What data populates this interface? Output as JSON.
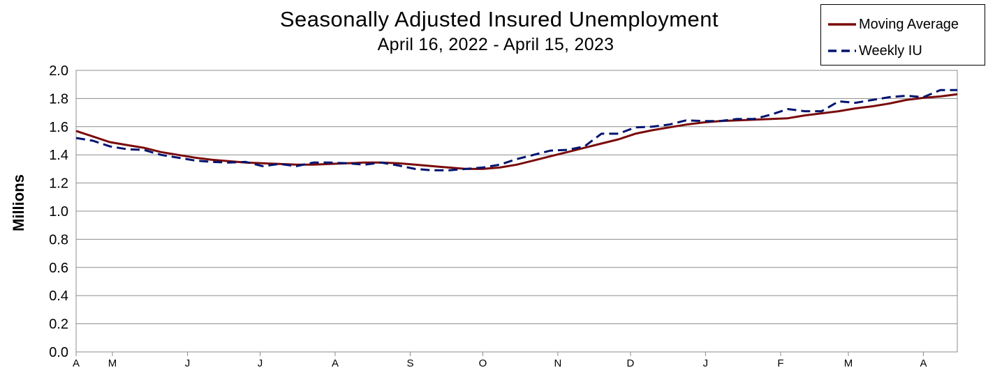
{
  "chart_data": {
    "type": "line",
    "title": "Seasonally Adjusted Insured Unemployment",
    "subtitle": "April 16, 2022 - April 15, 2023",
    "ylabel": "Millions",
    "ylim": [
      0,
      2.0
    ],
    "yticks": [
      0.0,
      0.2,
      0.4,
      0.6,
      0.8,
      1.0,
      1.2,
      1.4,
      1.6,
      1.8,
      2.0
    ],
    "ytick_labels": [
      "0.0",
      "0.2",
      "0.4",
      "0.6",
      "0.8",
      "1.0",
      "1.2",
      "1.4",
      "1.6",
      "1.8",
      "2.0"
    ],
    "xtick_labels": [
      "A",
      "M",
      "J",
      "J",
      "A",
      "S",
      "O",
      "N",
      "D",
      "J",
      "F",
      "M",
      "A"
    ],
    "xtick_dates": [
      "2022-04-16",
      "2022-05-01",
      "2022-06-01",
      "2022-07-01",
      "2022-08-01",
      "2022-09-01",
      "2022-10-01",
      "2022-11-01",
      "2022-12-01",
      "2023-01-01",
      "2023-02-01",
      "2023-03-01",
      "2023-04-01"
    ],
    "xlim": [
      "2022-04-16",
      "2023-04-15"
    ],
    "grid": true,
    "legend_position": "top-right",
    "series": [
      {
        "name": "Moving Average",
        "color": "#7a0a0a",
        "style": "solid",
        "x": [
          "2022-04-16",
          "2022-04-23",
          "2022-04-30",
          "2022-05-07",
          "2022-05-14",
          "2022-05-21",
          "2022-05-28",
          "2022-06-04",
          "2022-06-11",
          "2022-06-18",
          "2022-06-25",
          "2022-07-02",
          "2022-07-09",
          "2022-07-16",
          "2022-07-23",
          "2022-07-30",
          "2022-08-06",
          "2022-08-13",
          "2022-08-20",
          "2022-08-27",
          "2022-09-03",
          "2022-09-10",
          "2022-09-17",
          "2022-09-24",
          "2022-10-01",
          "2022-10-08",
          "2022-10-15",
          "2022-10-22",
          "2022-10-29",
          "2022-11-05",
          "2022-11-12",
          "2022-11-19",
          "2022-11-26",
          "2022-12-03",
          "2022-12-10",
          "2022-12-17",
          "2022-12-24",
          "2022-12-31",
          "2023-01-07",
          "2023-01-14",
          "2023-01-21",
          "2023-01-28",
          "2023-02-04",
          "2023-02-11",
          "2023-02-18",
          "2023-02-25",
          "2023-03-04",
          "2023-03-11",
          "2023-03-18",
          "2023-03-25",
          "2023-04-01",
          "2023-04-08",
          "2023-04-15"
        ],
        "values": [
          1.57,
          1.53,
          1.49,
          1.47,
          1.45,
          1.42,
          1.4,
          1.38,
          1.365,
          1.355,
          1.345,
          1.34,
          1.335,
          1.33,
          1.33,
          1.335,
          1.34,
          1.345,
          1.345,
          1.34,
          1.33,
          1.32,
          1.31,
          1.3,
          1.3,
          1.31,
          1.33,
          1.36,
          1.39,
          1.42,
          1.45,
          1.48,
          1.51,
          1.55,
          1.575,
          1.595,
          1.615,
          1.63,
          1.64,
          1.645,
          1.65,
          1.655,
          1.66,
          1.68,
          1.695,
          1.71,
          1.73,
          1.745,
          1.765,
          1.79,
          1.805,
          1.815,
          1.83
        ]
      },
      {
        "name": "Weekly IU",
        "color": "#00146e",
        "style": "dashed",
        "x": [
          "2022-04-16",
          "2022-04-23",
          "2022-04-30",
          "2022-05-07",
          "2022-05-14",
          "2022-05-21",
          "2022-05-28",
          "2022-06-04",
          "2022-06-11",
          "2022-06-18",
          "2022-06-25",
          "2022-07-02",
          "2022-07-09",
          "2022-07-16",
          "2022-07-23",
          "2022-07-30",
          "2022-08-06",
          "2022-08-13",
          "2022-08-20",
          "2022-08-27",
          "2022-09-03",
          "2022-09-10",
          "2022-09-17",
          "2022-09-24",
          "2022-10-01",
          "2022-10-08",
          "2022-10-15",
          "2022-10-22",
          "2022-10-29",
          "2022-11-05",
          "2022-11-12",
          "2022-11-19",
          "2022-11-26",
          "2022-12-03",
          "2022-12-10",
          "2022-12-17",
          "2022-12-24",
          "2022-12-31",
          "2023-01-07",
          "2023-01-14",
          "2023-01-21",
          "2023-01-28",
          "2023-02-04",
          "2023-02-11",
          "2023-02-18",
          "2023-02-25",
          "2023-03-04",
          "2023-03-11",
          "2023-03-18",
          "2023-03-25",
          "2023-04-01",
          "2023-04-08",
          "2023-04-15"
        ],
        "values": [
          1.52,
          1.5,
          1.46,
          1.44,
          1.435,
          1.4,
          1.38,
          1.36,
          1.35,
          1.345,
          1.35,
          1.32,
          1.335,
          1.32,
          1.345,
          1.345,
          1.34,
          1.33,
          1.345,
          1.325,
          1.3,
          1.29,
          1.29,
          1.3,
          1.31,
          1.33,
          1.37,
          1.4,
          1.43,
          1.435,
          1.46,
          1.55,
          1.55,
          1.595,
          1.6,
          1.615,
          1.645,
          1.64,
          1.64,
          1.655,
          1.655,
          1.685,
          1.725,
          1.71,
          1.71,
          1.78,
          1.77,
          1.79,
          1.81,
          1.82,
          1.81,
          1.86,
          1.86
        ]
      }
    ]
  }
}
